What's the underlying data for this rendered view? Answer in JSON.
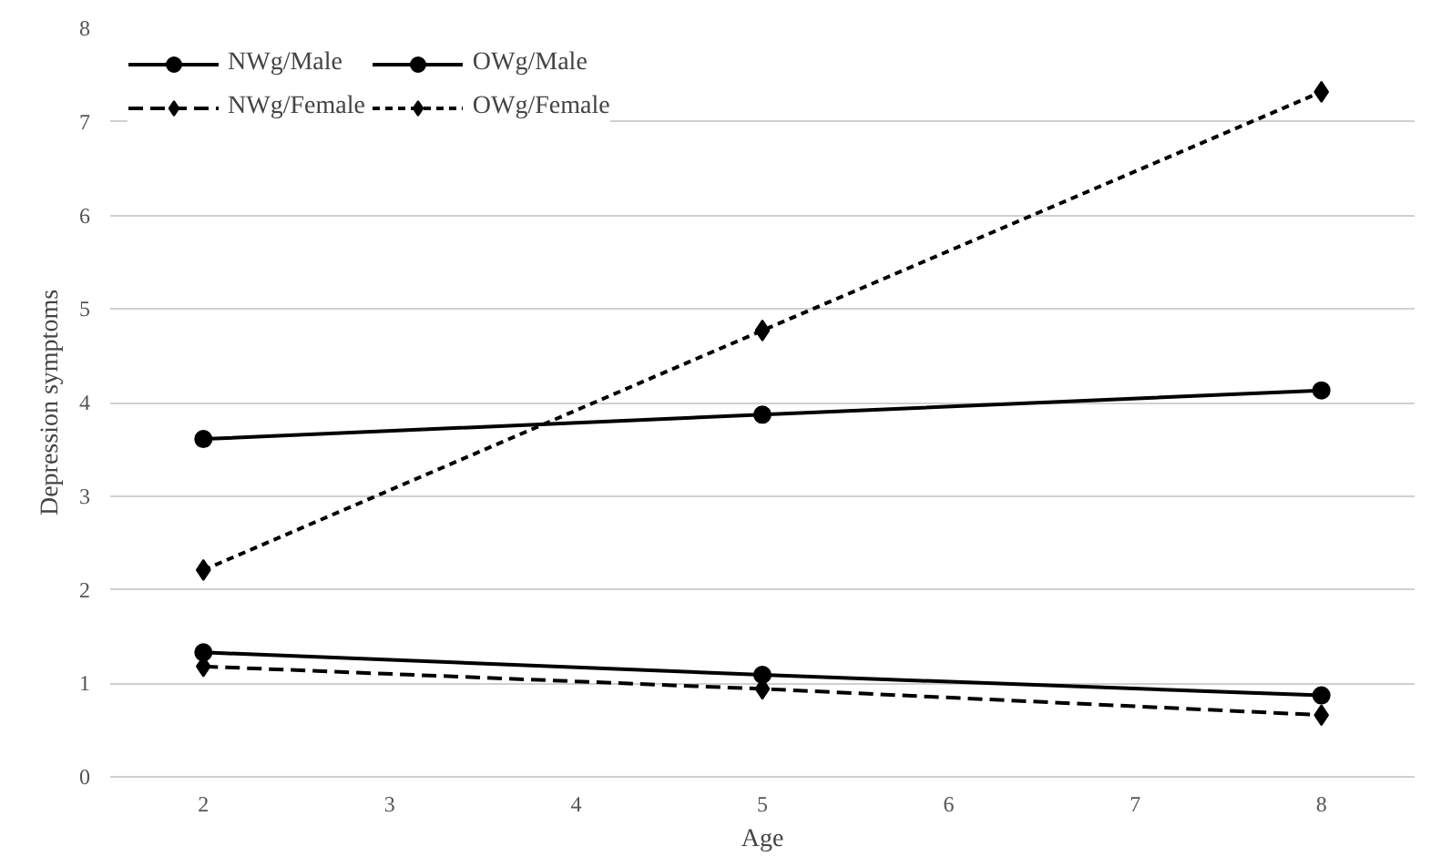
{
  "chart_data": {
    "type": "line",
    "xlabel": "Age",
    "ylabel": "Depression symptoms",
    "x": [
      2,
      5,
      8
    ],
    "xlim": [
      1.5,
      8.5
    ],
    "xticks": [
      2,
      3,
      4,
      5,
      6,
      7,
      8
    ],
    "ylim": [
      0,
      8
    ],
    "yticks": [
      0,
      1,
      2,
      3,
      4,
      5,
      6,
      7,
      8
    ],
    "grid": "y",
    "legend": "top left",
    "series": [
      {
        "name": "NWg/Male",
        "color": "#000000",
        "marker": "circle",
        "line_style": "solid",
        "values": [
          1.33,
          1.09,
          0.87
        ]
      },
      {
        "name": "NWg/Female",
        "color": "#000000",
        "marker": "diamond",
        "line_style": "dashed",
        "values": [
          1.18,
          0.94,
          0.66
        ]
      },
      {
        "name": "OWg/Male",
        "color": "#000000",
        "marker": "circle",
        "line_style": "solid",
        "values": [
          3.61,
          3.87,
          4.13
        ]
      },
      {
        "name": "OWg/Female",
        "color": "#000000",
        "marker": "diamond",
        "line_style": "dotted",
        "values": [
          2.21,
          4.77,
          7.32
        ]
      }
    ]
  }
}
